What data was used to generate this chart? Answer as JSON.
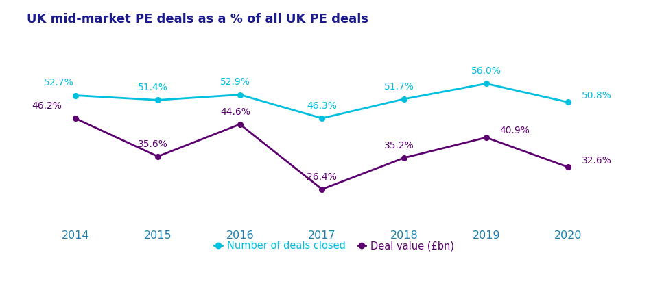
{
  "title": "UK mid-market PE deals as a % of all UK PE deals",
  "years": [
    2014,
    2015,
    2016,
    2017,
    2018,
    2019,
    2020
  ],
  "deals_closed": [
    52.7,
    51.4,
    52.9,
    46.3,
    51.7,
    56.0,
    50.8
  ],
  "deal_value": [
    46.2,
    35.6,
    44.6,
    26.4,
    35.2,
    40.9,
    32.6
  ],
  "deals_color": "#00BFDF",
  "value_color": "#5C0070",
  "title_color": "#1A1A8C",
  "year_color": "#2080B0",
  "deals_label": "Number of deals closed",
  "value_label": "Deal value (£bn)",
  "deals_annotations": [
    "52.7%",
    "51.4%",
    "52.9%",
    "46.3%",
    "51.7%",
    "56.0%",
    "50.8%"
  ],
  "value_annotations": [
    "46.2%",
    "35.6%",
    "44.6%",
    "26.4%",
    "35.2%",
    "40.9%",
    "32.6%"
  ],
  "background_color": "#FFFFFF",
  "figsize": [
    9.65,
    4.11
  ],
  "dpi": 100
}
